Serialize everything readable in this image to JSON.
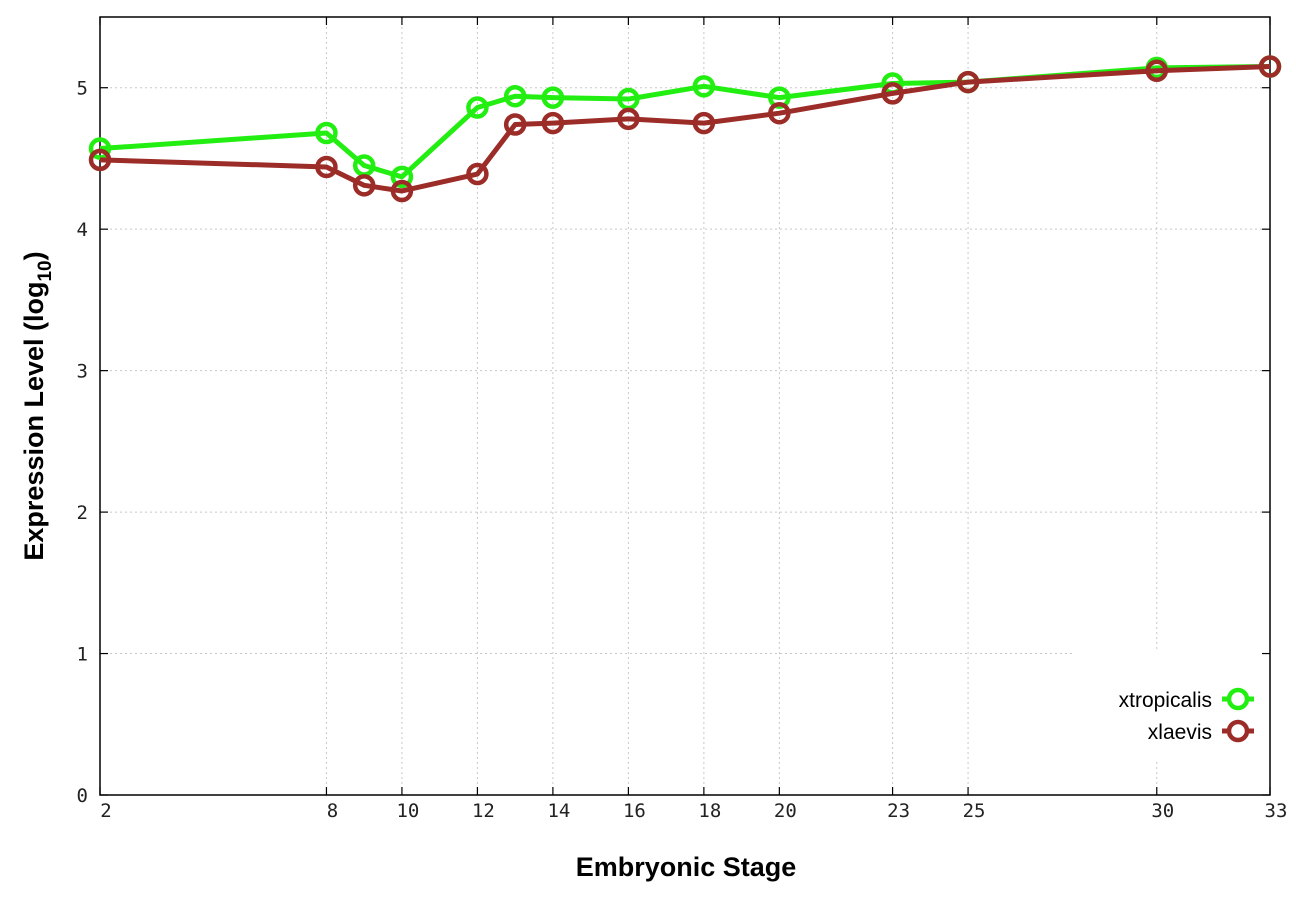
{
  "chart_data": {
    "type": "line",
    "title": "",
    "xlabel": "Embryonic Stage",
    "ylabel": "Expression Level (log",
    "ylabel_subscript": "10",
    "ylabel_close": ")",
    "x_ticks": [
      2,
      8,
      10,
      12,
      14,
      16,
      18,
      20,
      23,
      25,
      30,
      33
    ],
    "y_ticks": [
      0,
      1,
      2,
      3,
      4,
      5
    ],
    "xlim": [
      2,
      33
    ],
    "ylim": [
      0,
      5.5
    ],
    "grid": true,
    "legend_position": "bottom-right",
    "series": [
      {
        "name": "xtropicalis",
        "color": "#22ee11",
        "marker": "open-circle",
        "points": [
          [
            2,
            4.57
          ],
          [
            8,
            4.68
          ],
          [
            9,
            4.45
          ],
          [
            10,
            4.37
          ],
          [
            12,
            4.86
          ],
          [
            13,
            4.94
          ],
          [
            14,
            4.93
          ],
          [
            16,
            4.92
          ],
          [
            18,
            5.01
          ],
          [
            20,
            4.93
          ],
          [
            23,
            5.03
          ],
          [
            25,
            5.04
          ],
          [
            30,
            5.14
          ],
          [
            33,
            5.15
          ]
        ]
      },
      {
        "name": "xlaevis",
        "color": "#9b2c27",
        "marker": "open-circle",
        "points": [
          [
            2,
            4.49
          ],
          [
            8,
            4.44
          ],
          [
            9,
            4.31
          ],
          [
            10,
            4.27
          ],
          [
            12,
            4.39
          ],
          [
            13,
            4.74
          ],
          [
            14,
            4.75
          ],
          [
            16,
            4.78
          ],
          [
            18,
            4.75
          ],
          [
            20,
            4.82
          ],
          [
            23,
            4.96
          ],
          [
            25,
            5.04
          ],
          [
            30,
            5.12
          ],
          [
            33,
            5.15
          ]
        ]
      }
    ]
  }
}
